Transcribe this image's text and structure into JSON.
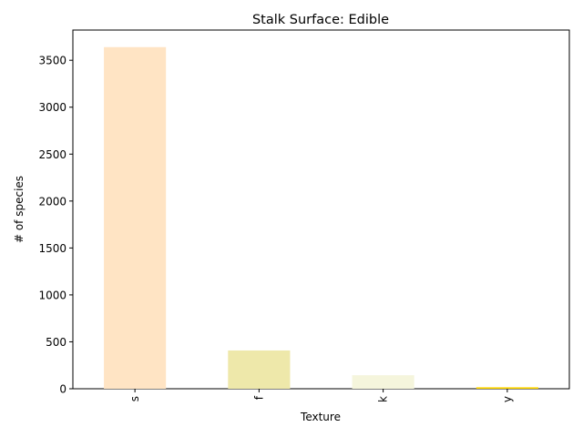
{
  "chart_data": {
    "type": "bar",
    "title": "Stalk Surface: Edible",
    "xlabel": "Texture",
    "ylabel": "# of species",
    "categories": [
      "s",
      "f",
      "k",
      "y"
    ],
    "values": [
      3640,
      408,
      144,
      16
    ],
    "colors": [
      "#ffe4c4",
      "#eee8aa",
      "#f5f5dc",
      "#ffd700"
    ],
    "ylim": [
      0,
      3822
    ],
    "yticks": [
      0,
      500,
      1000,
      1500,
      2000,
      2500,
      3000,
      3500
    ],
    "grid": false,
    "legend": "none"
  }
}
